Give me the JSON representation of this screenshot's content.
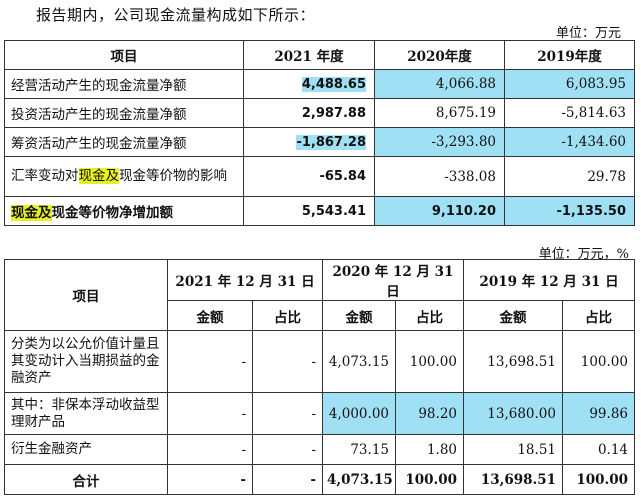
{
  "intro": "报告期内，公司现金流量构成如下所示：",
  "unit1": "单位：万元",
  "cashflow": {
    "headers": [
      "项目",
      "2021 年度",
      "2020年度",
      "2019年度"
    ],
    "rows": [
      {
        "label": "经营活动产生的现金流量净额",
        "v2021": "4,488.65",
        "v2020": "4,066.88",
        "v2019": "6,083.95"
      },
      {
        "label": "投资活动产生的现金流量净额",
        "v2021": "2,987.88",
        "v2020": "8,675.19",
        "v2019": "-5,814.63"
      },
      {
        "label": "筹资活动产生的现金流量净额",
        "v2021": "-1,867.28",
        "v2020": "-3,293.80",
        "v2019": "-1,434.60"
      },
      {
        "label_pre": "汇率变动对",
        "label_hl": "现金及",
        "label_post": "现金等价物的影响",
        "v2021": "-65.84",
        "v2020": "-338.08",
        "v2019": "29.78"
      },
      {
        "label_hl": "现金及",
        "label_post": "现金等价物净增加额",
        "v2021": "5,543.41",
        "v2020": "9,110.20",
        "v2019": "-1,135.50"
      }
    ]
  },
  "unit2": "单位：万元，%",
  "assets": {
    "item_header": "项目",
    "dates": [
      "2021 年 12 月 31 日",
      "2020 年 12 月 31 日",
      "2019 年 12 月 31 日"
    ],
    "sub": [
      "金额",
      "占比",
      "金额",
      "占比",
      "金额",
      "占比"
    ],
    "rows": [
      {
        "label": "分类为以公允价值计量且其变动计入当期损益的金融资产",
        "cells": [
          "-",
          "-",
          "4,073.15",
          "100.00",
          "13,698.51",
          "100.00"
        ]
      },
      {
        "label": "其中：非保本浮动收益型理财产品",
        "cells": [
          "-",
          "-",
          "4,000.00",
          "98.20",
          "13,680.00",
          "99.86"
        ]
      },
      {
        "label": "衍生金融资产",
        "cells": [
          "-",
          "-",
          "73.15",
          "1.80",
          "18.51",
          "0.14"
        ]
      },
      {
        "label": "合计",
        "cells": [
          "-",
          "-",
          "4,073.15",
          "100.00",
          "13,698.51",
          "100.00"
        ]
      }
    ]
  }
}
